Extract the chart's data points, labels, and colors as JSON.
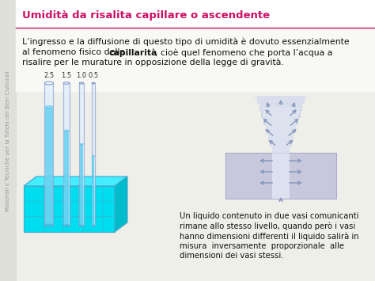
{
  "bg_color": "#efefea",
  "title": "Umidità da risalita capillare o ascendente",
  "title_color": "#cc1166",
  "sidebar_text": "Materiali e Tecniche per la Tutela dei Beni Culturali",
  "sidebar_color": "#999999",
  "body_text_2": "Un liquido contenuto in due vasi comunicanti\nrimane allo stesso livello, quando però i vasi\nhanno dimensioni differenti il liquido salirà in\nmisura  inversamente  proporzionale  alle\ndimensioni dei vasi stessi.",
  "tube_labels": [
    "2.5",
    "1.5",
    "1.0",
    "0.5"
  ],
  "arrow_color": "#8899bb",
  "header_bg": "#ffffff",
  "body_bg": "#efefea",
  "wall_color": "#c8c8dd",
  "wall_edge": "#aaaacc"
}
